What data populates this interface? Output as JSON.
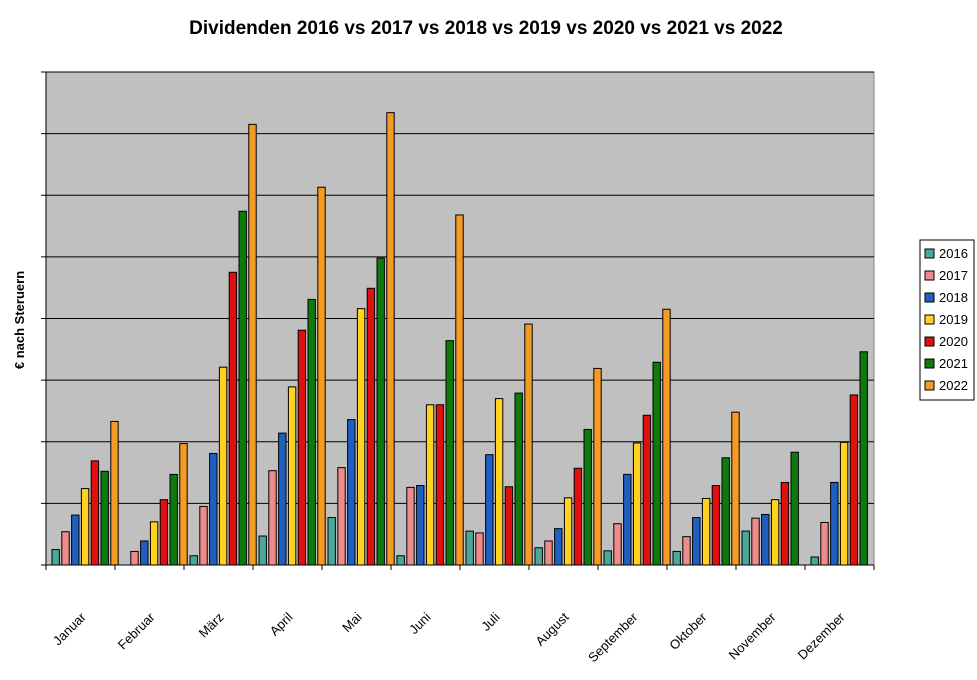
{
  "chart_data": {
    "type": "bar",
    "title": "Dividenden 2016 vs 2017 vs 2018 vs 2019 vs 2020 vs 2021 vs 2022",
    "xlabel": "",
    "ylabel": "€ nach Steruern",
    "ylim": [
      0,
      8
    ],
    "grid": true,
    "legend_position": "right",
    "plot_background": "#c0c0c0",
    "categories": [
      "Januar",
      "Februar",
      "März",
      "April",
      "Mai",
      "Juni",
      "Juli",
      "August",
      "September",
      "Oktober",
      "November",
      "Dezember"
    ],
    "series": [
      {
        "name": "2016",
        "color": "#4aa89a",
        "values": [
          0.25,
          0.0,
          0.15,
          0.47,
          0.77,
          0.15,
          0.55,
          0.28,
          0.23,
          0.22,
          0.55,
          0.13
        ]
      },
      {
        "name": "2017",
        "color": "#f08b8b",
        "values": [
          0.54,
          0.22,
          0.95,
          1.53,
          1.58,
          1.26,
          0.52,
          0.39,
          0.67,
          0.46,
          0.76,
          0.69
        ]
      },
      {
        "name": "2018",
        "color": "#1f5fbf",
        "values": [
          0.81,
          0.39,
          1.81,
          2.14,
          2.36,
          1.29,
          1.79,
          0.59,
          1.47,
          0.77,
          0.82,
          1.34
        ]
      },
      {
        "name": "2019",
        "color": "#ffd21f",
        "values": [
          1.24,
          0.7,
          3.21,
          2.89,
          4.16,
          2.6,
          2.7,
          1.09,
          1.98,
          1.08,
          1.06,
          1.99
        ]
      },
      {
        "name": "2020",
        "color": "#e01010",
        "values": [
          1.69,
          1.06,
          4.75,
          3.81,
          4.49,
          2.6,
          1.27,
          1.57,
          2.43,
          1.29,
          1.34,
          2.76
        ]
      },
      {
        "name": "2021",
        "color": "#0e7a0e",
        "values": [
          1.52,
          1.47,
          5.74,
          4.31,
          4.98,
          3.64,
          2.79,
          2.2,
          3.29,
          1.74,
          1.83,
          3.46
        ]
      },
      {
        "name": "2022",
        "color": "#f59a23",
        "values": [
          2.33,
          1.97,
          7.15,
          6.13,
          7.34,
          5.68,
          3.91,
          3.19,
          4.15,
          2.48,
          0.0,
          0.0
        ]
      }
    ]
  }
}
